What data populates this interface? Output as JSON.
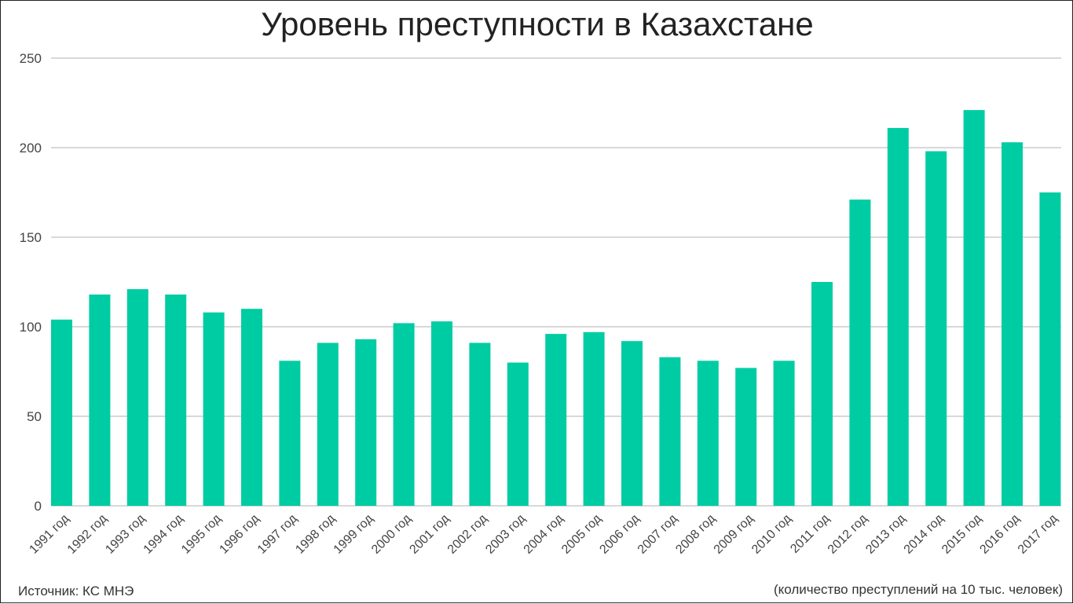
{
  "chart_data": {
    "type": "bar",
    "title": "Уровень преступности в Казахстане",
    "source": "Источник: КС МНЭ",
    "units": "(количество преступлений на 10 тыс. человек)",
    "categories": [
      "1991 год",
      "1992 год",
      "1993 год",
      "1994 год",
      "1995 год",
      "1996 год",
      "1997 год",
      "1998 год",
      "1999 год",
      "2000 год",
      "2001 год",
      "2002 год",
      "2003 год",
      "2004 год",
      "2005 год",
      "2006 год",
      "2007 год",
      "2008 год",
      "2009 год",
      "2010 год",
      "2011 год",
      "2012 год",
      "2013 год",
      "2014 год",
      "2015 год",
      "2016 год",
      "2017 год"
    ],
    "values": [
      104,
      118,
      121,
      118,
      108,
      110,
      81,
      91,
      93,
      102,
      103,
      91,
      80,
      96,
      97,
      92,
      83,
      81,
      77,
      81,
      125,
      171,
      211,
      198,
      221,
      203,
      175
    ],
    "ylim": [
      0,
      250
    ],
    "yticks": [
      0,
      50,
      100,
      150,
      200,
      250
    ],
    "grid": true,
    "bar_color": "#00cca3",
    "grid_color": "#cccccc"
  }
}
